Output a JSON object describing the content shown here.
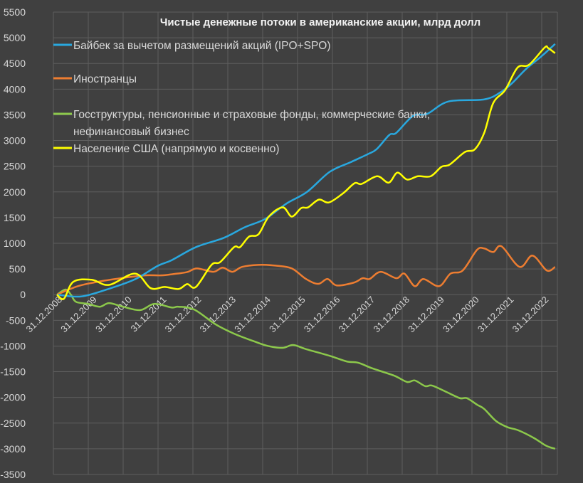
{
  "chart_data": {
    "type": "line",
    "title": "Чистые денежные потоки в американские акции, млрд долл",
    "xlabel": "",
    "ylabel": "",
    "ylim": [
      -3500,
      5500
    ],
    "yticks": [
      "5500",
      "5000",
      "4500",
      "4000",
      "3500",
      "3000",
      "2500",
      "2000",
      "1500",
      "1000",
      "500",
      "0",
      "-500",
      "-1000",
      "-1500",
      "-2000",
      "-2500",
      "-3000",
      "-3500"
    ],
    "ytick_values": [
      5500,
      5000,
      4500,
      4000,
      3500,
      3000,
      2500,
      2000,
      1500,
      1000,
      500,
      0,
      -500,
      -1000,
      -1500,
      -2000,
      -2500,
      -3000,
      -3500
    ],
    "xticks": [
      "31.12.2008",
      "31.12.2009",
      "31.12.2010",
      "31.12.2011",
      "31.12.2012",
      "31.12.2013",
      "31.12.2014",
      "31.12.2015",
      "31.12.2016",
      "31.12.2017",
      "31.12.2018",
      "31.12.2019",
      "31.12.2020",
      "31.12.2021",
      "31.12.2022"
    ],
    "xtick_values": [
      2008,
      2009,
      2010,
      2011,
      2012,
      2013,
      2014,
      2015,
      2016,
      2017,
      2018,
      2019,
      2020,
      2021,
      2022
    ],
    "xlim": [
      2008,
      2022.35
    ],
    "grid": true,
    "legend_position": "top-left",
    "series": [
      {
        "name": "Байбек за вычетом размещений акций (IPO+SPO)",
        "color": "#29a8df",
        "x": [
          2008,
          2008.7,
          2009.5,
          2010.25,
          2010.9,
          2011.3,
          2012.0,
          2012.8,
          2013.4,
          2014.0,
          2014.6,
          2015.2,
          2015.85,
          2016.46,
          2016.95,
          2017.2,
          2017.57,
          2017.77,
          2018.25,
          2018.66,
          2019.27,
          2020.3,
          2020.77,
          2021.1,
          2021.5,
          2021.93,
          2022.34
        ],
        "y": [
          0,
          -35,
          115,
          300,
          560,
          670,
          925,
          1105,
          1310,
          1475,
          1770,
          2000,
          2390,
          2580,
          2735,
          2830,
          3110,
          3150,
          3480,
          3520,
          3760,
          3800,
          3940,
          4115,
          4390,
          4630,
          4880
        ]
      },
      {
        "name": "Иностранцы",
        "color": "#ed7d31",
        "x": [
          2008,
          2008.6,
          2009.17,
          2009.84,
          2010.52,
          2011.0,
          2011.34,
          2011.75,
          2012.03,
          2012.5,
          2012.77,
          2013.05,
          2013.33,
          2013.8,
          2014.29,
          2014.76,
          2015.17,
          2015.52,
          2015.79,
          2016.05,
          2016.55,
          2016.8,
          2017.0,
          2017.32,
          2017.77,
          2018.0,
          2018.3,
          2018.55,
          2019.0,
          2019.33,
          2019.68,
          2020.09,
          2020.3,
          2020.56,
          2020.8,
          2021.32,
          2021.69,
          2022.1,
          2022.34
        ],
        "y": [
          0,
          165,
          250,
          320,
          375,
          375,
          400,
          440,
          510,
          445,
          525,
          445,
          540,
          580,
          565,
          510,
          305,
          210,
          305,
          180,
          235,
          320,
          305,
          445,
          320,
          410,
          165,
          305,
          165,
          410,
          470,
          870,
          900,
          830,
          940,
          540,
          760,
          470,
          540
        ]
      },
      {
        "name": "Госструктуры, пенсионные и страховые фонды, коммерческие банки, нефинансовый бизнес",
        "name_line1": "Госструктуры, пенсионные и страховые фонды, коммерческие банки,",
        "name_line2": "нефинансовый бизнес",
        "color": "#8cc84b",
        "x": [
          2008,
          2008.25,
          2008.4,
          2008.55,
          2008.9,
          2009.23,
          2009.5,
          2009.9,
          2010.4,
          2010.8,
          2011.3,
          2011.5,
          2011.95,
          2012.57,
          2013.1,
          2013.68,
          2014.08,
          2014.5,
          2014.8,
          2015.17,
          2015.85,
          2016.34,
          2016.67,
          2017.08,
          2017.7,
          2018.08,
          2018.3,
          2018.6,
          2018.8,
          2019.2,
          2019.6,
          2019.8,
          2020.09,
          2020.3,
          2020.64,
          2020.97,
          2021.28,
          2021.73,
          2022.08,
          2022.34
        ],
        "y": [
          0,
          100,
          0,
          -140,
          -180,
          -235,
          -165,
          -235,
          -300,
          -180,
          -250,
          -235,
          -290,
          -580,
          -760,
          -910,
          -1000,
          -1035,
          -980,
          -1060,
          -1190,
          -1300,
          -1325,
          -1435,
          -1575,
          -1700,
          -1670,
          -1780,
          -1770,
          -1890,
          -2015,
          -2015,
          -2140,
          -2225,
          -2460,
          -2580,
          -2640,
          -2790,
          -2940,
          -3000
        ]
      },
      {
        "name": "Население США (напрямую и косвенно)",
        "color": "#ffff00",
        "x": [
          2008,
          2008.2,
          2008.47,
          2009.0,
          2009.5,
          2010.25,
          2010.7,
          2011.1,
          2011.5,
          2011.75,
          2012.0,
          2012.45,
          2012.7,
          2013.1,
          2013.27,
          2013.53,
          2013.8,
          2014.1,
          2014.5,
          2014.76,
          2015.03,
          2015.23,
          2015.54,
          2015.83,
          2016.24,
          2016.57,
          2016.77,
          2017.22,
          2017.55,
          2017.8,
          2018.08,
          2018.39,
          2018.76,
          2019.07,
          2019.3,
          2019.74,
          2020.03,
          2020.3,
          2020.56,
          2020.9,
          2021.26,
          2021.59,
          2022.04,
          2022.14,
          2022.34
        ],
        "y": [
          0,
          -80,
          250,
          290,
          190,
          410,
          125,
          150,
          110,
          205,
          150,
          580,
          635,
          925,
          925,
          1130,
          1175,
          1520,
          1700,
          1520,
          1685,
          1700,
          1850,
          1795,
          1975,
          2170,
          2155,
          2305,
          2180,
          2375,
          2240,
          2305,
          2305,
          2490,
          2530,
          2775,
          2830,
          3150,
          3730,
          3980,
          4420,
          4475,
          4810,
          4800,
          4700
        ]
      }
    ]
  }
}
